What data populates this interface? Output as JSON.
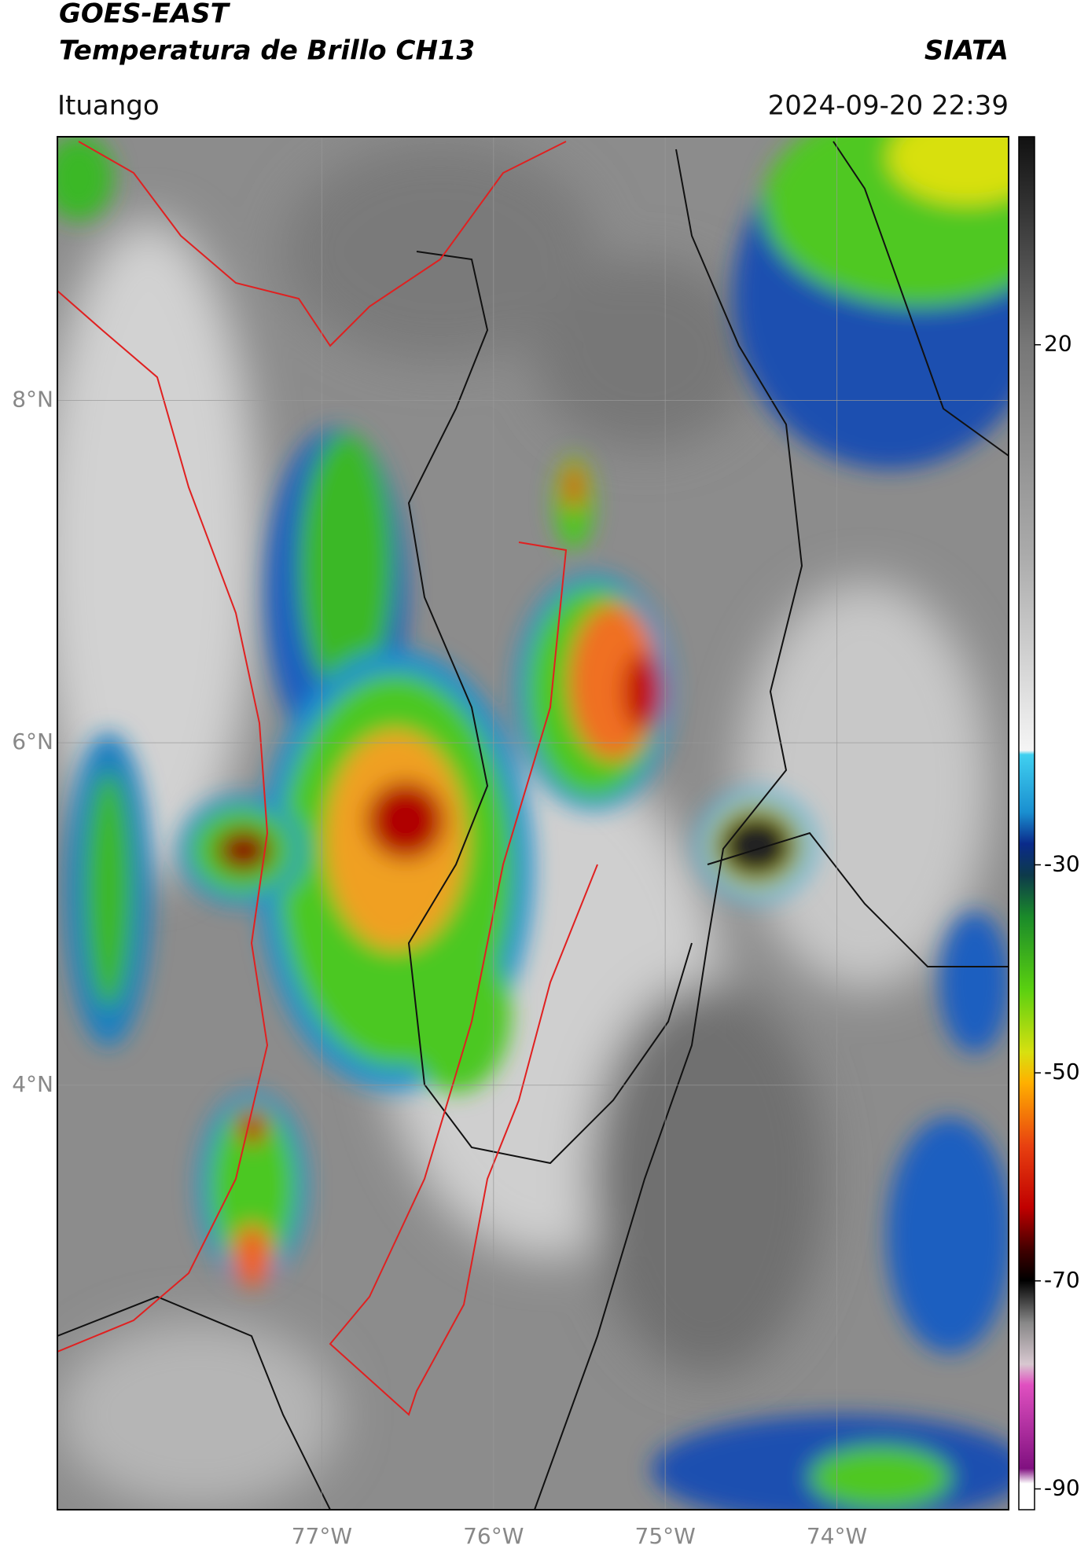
{
  "header": {
    "satellite": "GOES-EAST",
    "product": "Temperatura de Brillo CH13",
    "source": "SIATA",
    "location": "Ituango",
    "timestamp": "2024-09-20 22:39"
  },
  "map": {
    "xlim": [
      -78.54,
      -73.0
    ],
    "ylim": [
      1.52,
      9.54
    ],
    "xticks": [
      {
        "value": -77,
        "label": "77°W"
      },
      {
        "value": -76,
        "label": "76°W"
      },
      {
        "value": -75,
        "label": "75°W"
      },
      {
        "value": -74,
        "label": "74°W"
      }
    ],
    "yticks": [
      {
        "value": 8,
        "label": "8°N"
      },
      {
        "value": 6,
        "label": "6°N"
      },
      {
        "value": 4,
        "label": "4°N"
      }
    ]
  },
  "colorbar": {
    "lim": [
      -92,
      40
    ],
    "ticks": [
      20,
      -30,
      -50,
      -70,
      -90
    ]
  }
}
